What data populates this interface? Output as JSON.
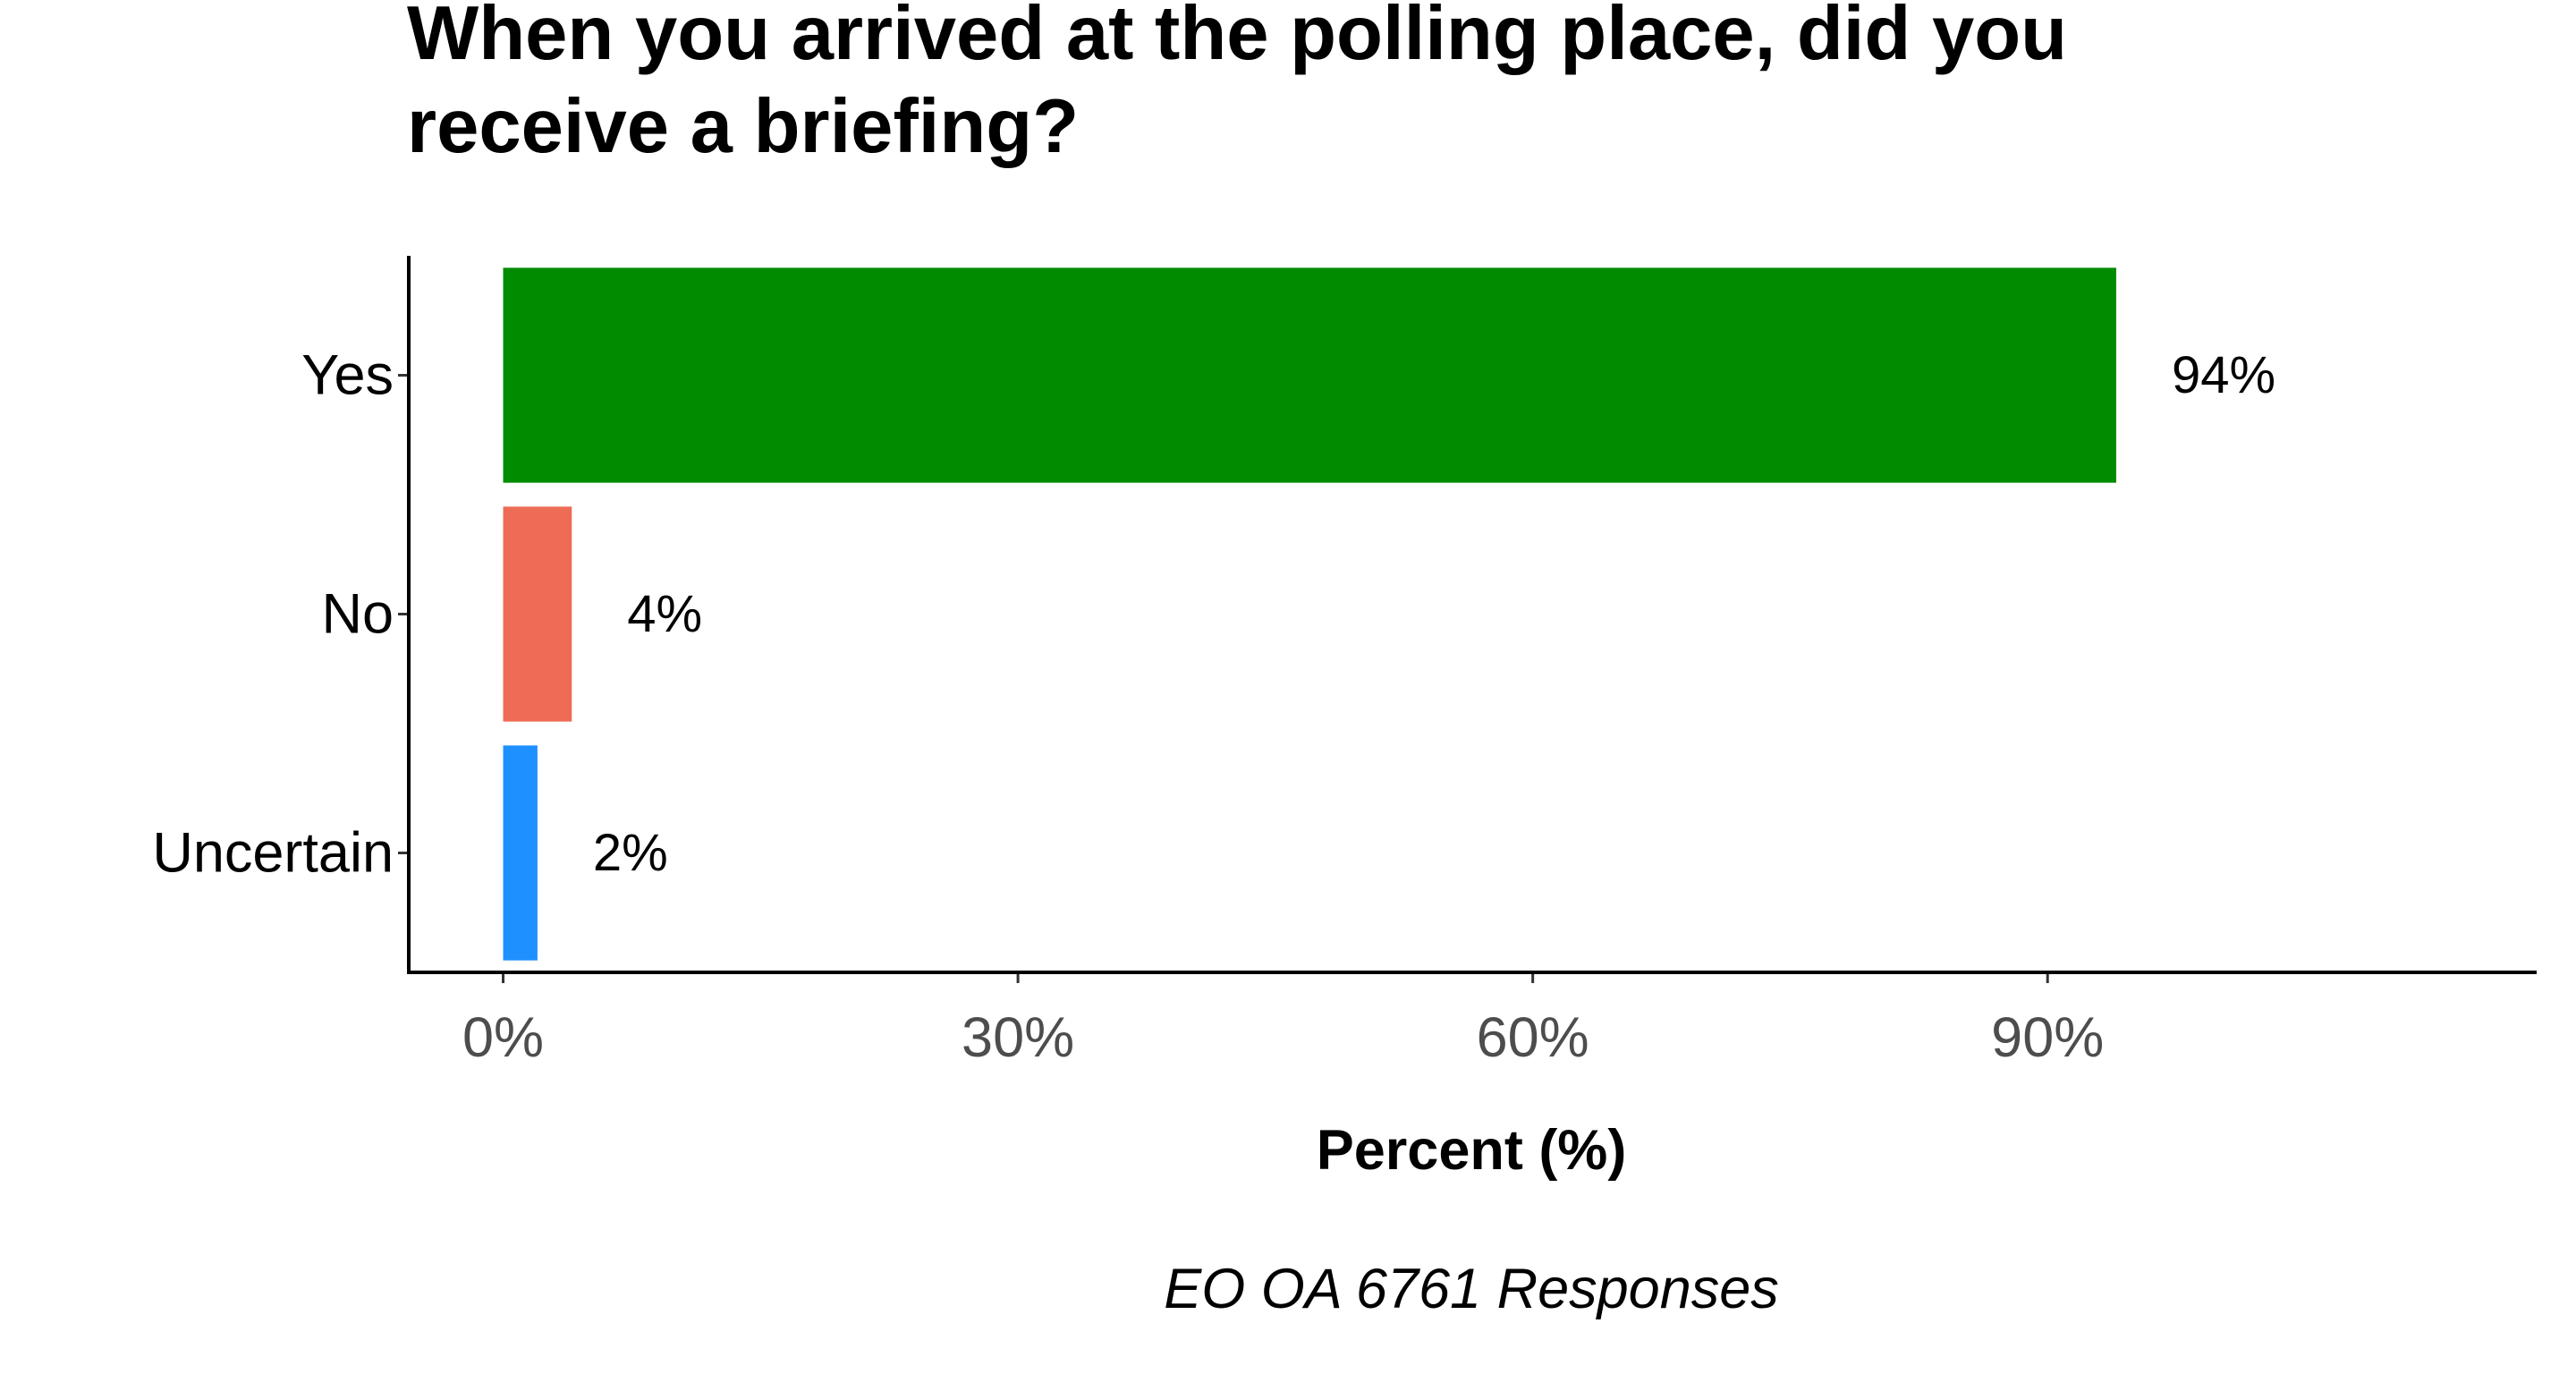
{
  "chart_data": {
    "type": "bar",
    "orientation": "horizontal",
    "title": "When you arrived at the polling place, did you receive a briefing?",
    "title_lines": [
      "When you arrived at the polling place, did you",
      "receive a briefing?"
    ],
    "xlabel": "Percent (%)",
    "ylabel": "",
    "caption": "EO OA 6761 Responses",
    "categories": [
      "Yes",
      "No",
      "Uncertain"
    ],
    "values": [
      94,
      4,
      2
    ],
    "data_labels": [
      "94%",
      "4%",
      "2%"
    ],
    "colors": [
      "#008b00",
      "#ee6c55",
      "#1e90ff"
    ],
    "xlim": [
      -5.5,
      118.5
    ],
    "xticks": [
      0,
      30,
      60,
      90
    ],
    "xtick_labels": [
      "0%",
      "30%",
      "60%",
      "90%"
    ],
    "grid": false,
    "legend": "none"
  }
}
